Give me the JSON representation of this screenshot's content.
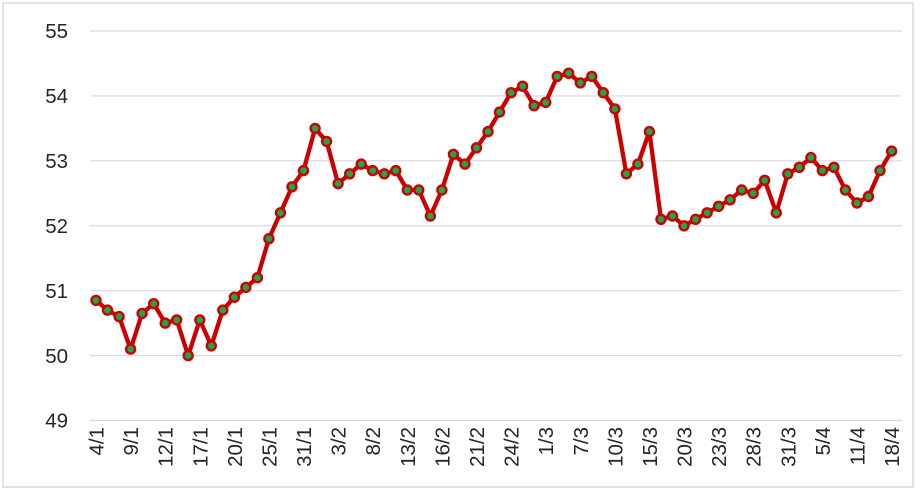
{
  "chart_data": {
    "type": "line",
    "values": [
      50.85,
      50.7,
      50.6,
      50.1,
      50.65,
      50.8,
      50.5,
      50.55,
      50.0,
      50.55,
      50.15,
      50.7,
      50.9,
      51.05,
      51.2,
      51.8,
      52.2,
      52.6,
      52.85,
      53.5,
      53.3,
      52.65,
      52.8,
      52.95,
      52.85,
      52.8,
      52.85,
      52.55,
      52.55,
      52.15,
      52.55,
      53.1,
      52.95,
      53.2,
      53.45,
      53.75,
      54.05,
      54.15,
      53.85,
      53.9,
      54.3,
      54.35,
      54.2,
      54.3,
      54.05,
      53.8,
      52.8,
      52.95,
      53.45,
      52.1,
      52.15,
      52.0,
      52.1,
      52.2,
      52.3,
      52.4,
      52.55,
      52.5,
      52.7,
      52.2,
      52.8,
      52.9,
      53.05,
      52.85,
      52.9,
      52.55,
      52.35,
      52.45,
      52.85,
      53.15
    ],
    "x_tick_labels": [
      "4/1",
      "9/1",
      "12/1",
      "17/1",
      "20/1",
      "25/1",
      "31/1",
      "3/2",
      "8/2",
      "13/2",
      "16/2",
      "21/2",
      "24/2",
      "1/3",
      "7/3",
      "10/3",
      "15/3",
      "20/3",
      "23/3",
      "28/3",
      "31/3",
      "5/4",
      "11/4",
      "18/4"
    ],
    "x_tick_interval": 3,
    "y_tick_labels": [
      "49",
      "50",
      "51",
      "52",
      "53",
      "54",
      "55"
    ],
    "ylim": [
      49,
      55
    ],
    "y_tick_step": 1,
    "grid": "horizontal",
    "legend": "none",
    "line_color": "#CC0000",
    "marker_fill_color": "#21A54B",
    "marker_outline_color": "#CC0000",
    "gridline_color": "#D9D9D9",
    "frame_color": "#D9D9D9",
    "axis_text_color": "#262626",
    "background_color": "#FFFFFF"
  }
}
